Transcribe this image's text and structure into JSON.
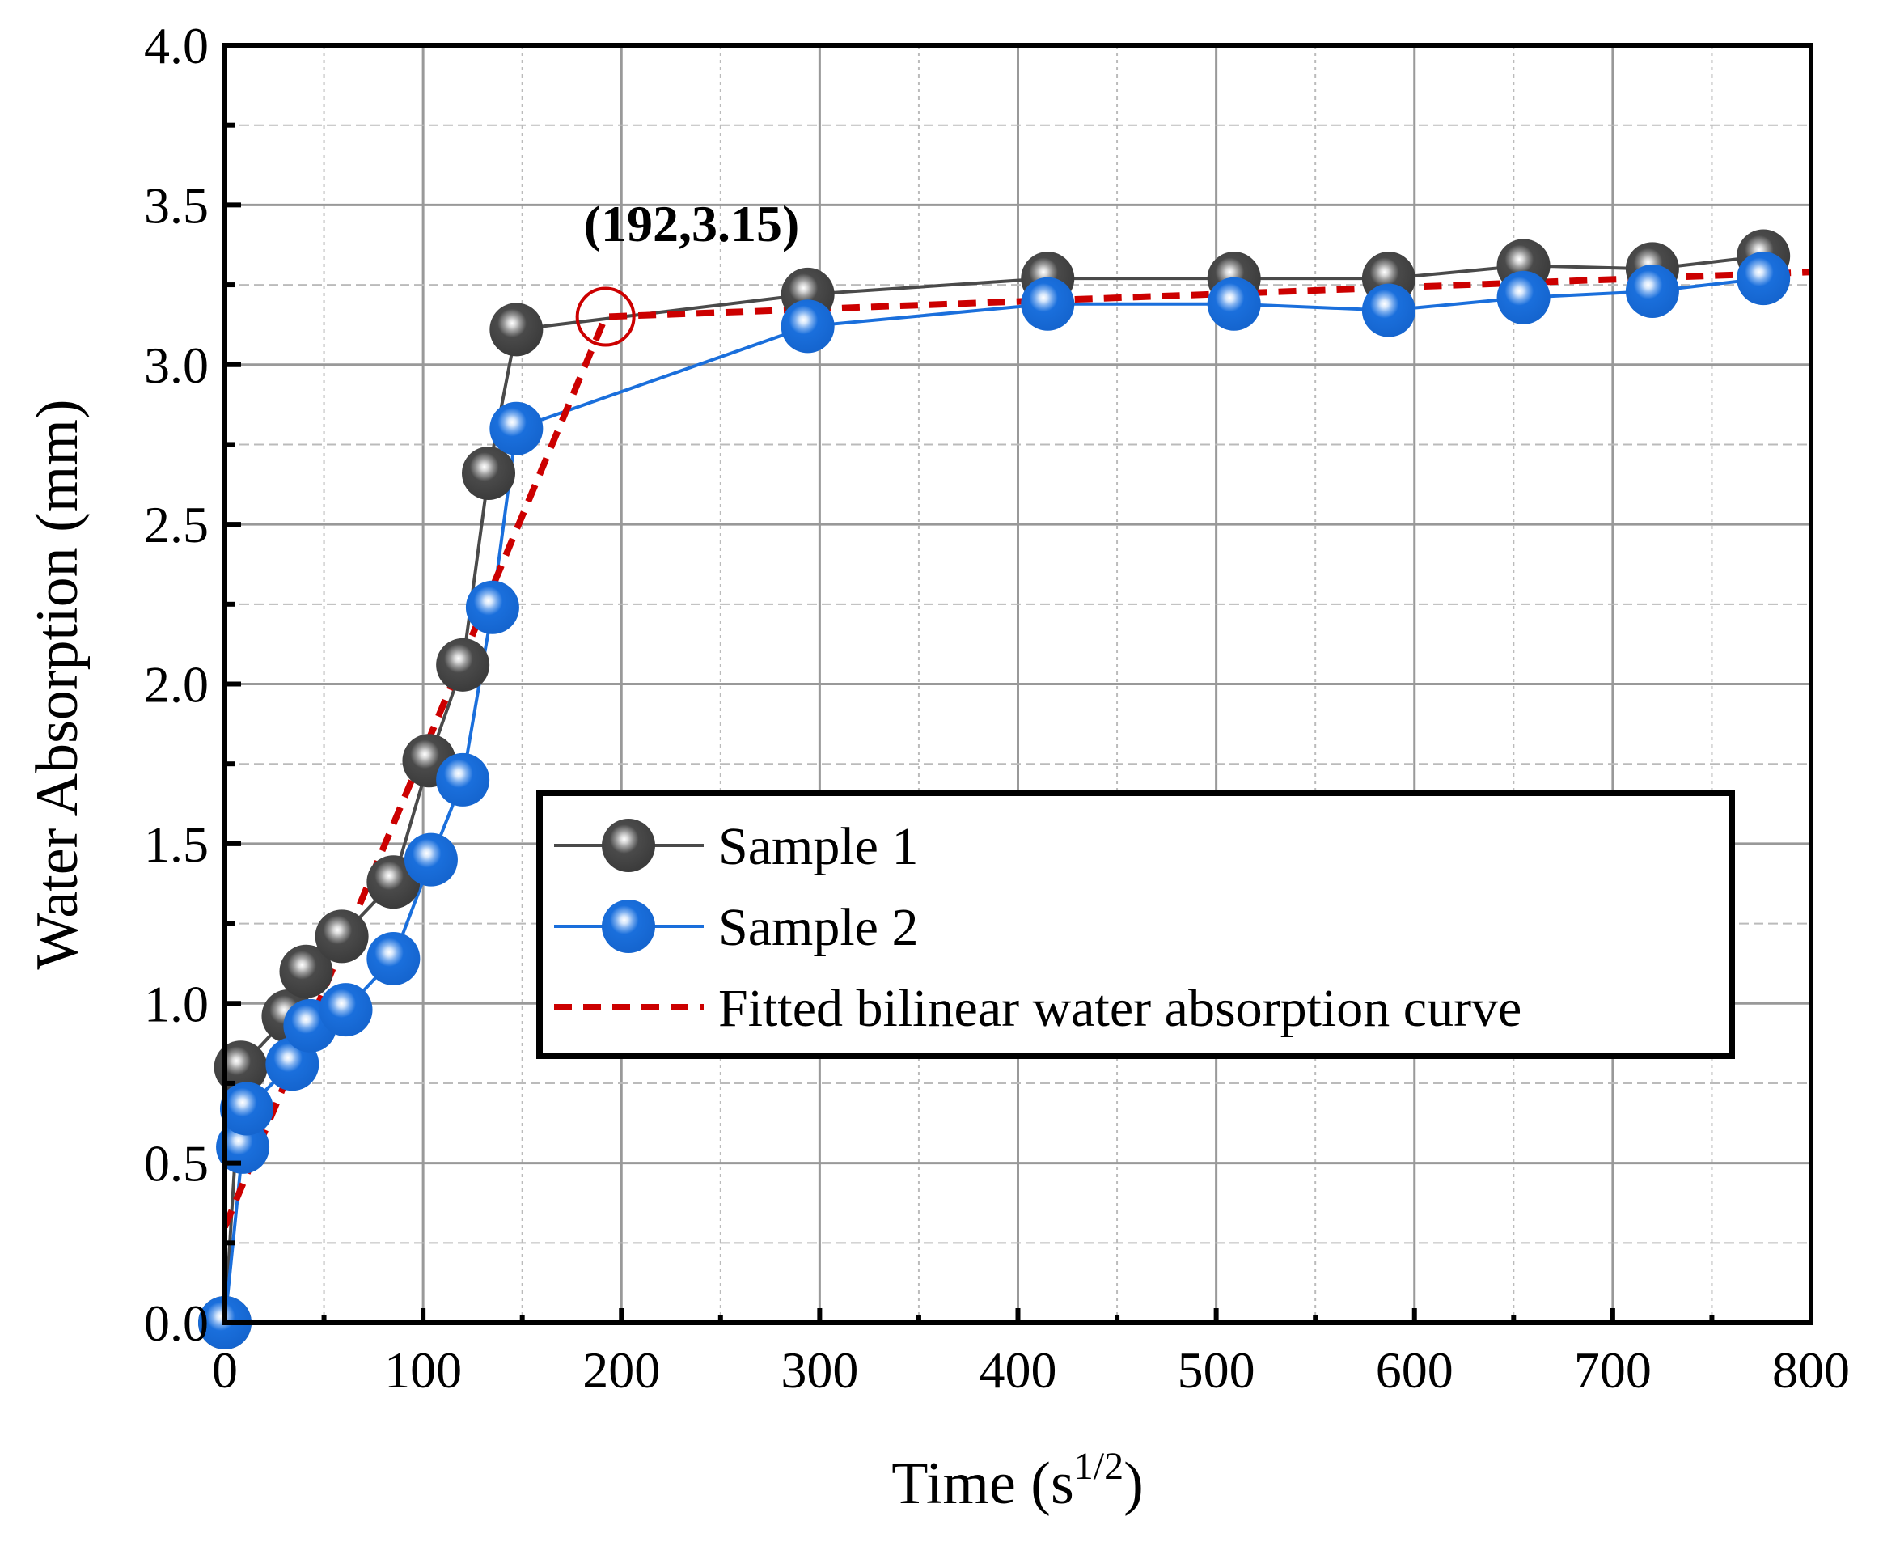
{
  "chart_data": {
    "type": "line",
    "title": "",
    "xlabel": "Time (s",
    "xlabel_sup": "1/2",
    "xlabel_end": ")",
    "ylabel": "Water Absorption (mm)",
    "xlim": [
      0,
      800
    ],
    "ylim": [
      0,
      4.0
    ],
    "xticks": [
      "0",
      "100",
      "200",
      "300",
      "400",
      "500",
      "600",
      "700",
      "800"
    ],
    "yticks": [
      "0.0",
      "0.5",
      "1.0",
      "1.5",
      "2.0",
      "2.5",
      "3.0",
      "3.5",
      "4.0"
    ],
    "grid": true,
    "legend_position": "center-right",
    "series": [
      {
        "name": "Sample 1",
        "color": "#4a4a4a",
        "x": [
          0,
          8,
          32,
          41,
          59,
          85,
          103,
          120,
          133,
          147,
          294,
          415,
          509,
          587,
          655,
          720,
          776
        ],
        "y": [
          0,
          0.8,
          0.96,
          1.1,
          1.21,
          1.38,
          1.76,
          2.06,
          2.66,
          3.11,
          3.22,
          3.27,
          3.27,
          3.27,
          3.31,
          3.3,
          3.34
        ]
      },
      {
        "name": "Sample 2",
        "color": "#1a6fdc",
        "x": [
          0,
          9,
          11,
          34,
          43,
          61,
          85,
          104,
          120,
          135,
          147,
          294,
          415,
          509,
          587,
          655,
          720,
          776
        ],
        "y": [
          0,
          0.55,
          0.67,
          0.81,
          0.93,
          0.98,
          1.14,
          1.45,
          1.7,
          2.24,
          2.8,
          3.12,
          3.19,
          3.19,
          3.17,
          3.21,
          3.23,
          3.27
        ]
      },
      {
        "name": "Fitted bilinear water absorption curve",
        "color": "#cc0000",
        "style": "dashed",
        "x": [
          0,
          192,
          800
        ],
        "y": [
          0.3,
          3.15,
          3.29
        ]
      }
    ],
    "annotations": [
      {
        "text": "(192,3.15)",
        "x": 192,
        "y": 3.15,
        "marker": "circle"
      }
    ]
  }
}
